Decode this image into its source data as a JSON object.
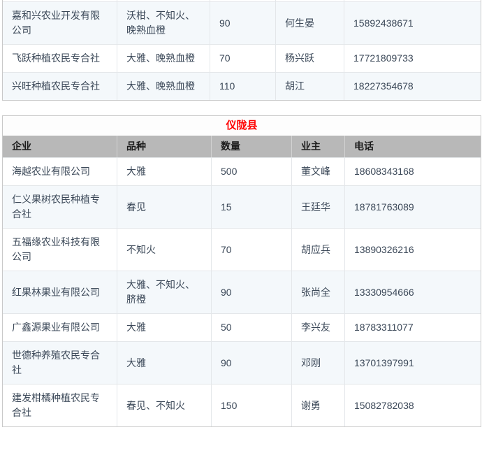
{
  "colors": {
    "accent_title": "#ff0000",
    "header_bg": "#b8b8b8",
    "stripe_bg": "#f4f8fb",
    "cell_text": "#3b4858",
    "border_outer": "#c9c9c9",
    "border_inner": "#e4e7ea"
  },
  "columns_keys": [
    "company",
    "variety",
    "quantity",
    "owner",
    "phone"
  ],
  "top_table": {
    "rows": [
      {
        "company": "嘉和兴农业开发有限公司",
        "variety": "沃柑、不知火、晚熟血橙",
        "quantity": "90",
        "owner": "何生晏",
        "phone": "15892438671",
        "striped": true
      },
      {
        "company": "飞跃种植农民专合社",
        "variety": "大雅、晚熟血橙",
        "quantity": "70",
        "owner": "杨兴跃",
        "phone": "17721809733",
        "striped": false
      },
      {
        "company": "兴旺种植农民专合社",
        "variety": "大雅、晚熟血橙",
        "quantity": "110",
        "owner": "胡江",
        "phone": "18227354678",
        "striped": true
      }
    ]
  },
  "county_table": {
    "title": "仪陇县",
    "headers": [
      "企业",
      "品种",
      "数量",
      "业主",
      "电话"
    ],
    "rows": [
      {
        "company": "海越农业有限公司",
        "variety": "大雅",
        "quantity": "500",
        "owner": "董文峰",
        "phone": "18608343168",
        "striped": false
      },
      {
        "company": "仁义果树农民种植专合社",
        "variety": "春见",
        "quantity": "15",
        "owner": "王廷华",
        "phone": "18781763089",
        "striped": true
      },
      {
        "company": "五福缘农业科技有限公司",
        "variety": "不知火",
        "quantity": "70",
        "owner": "胡应兵",
        "phone": "13890326216",
        "striped": false
      },
      {
        "company": "红果林果业有限公司",
        "variety": "大雅、不知火、脐橙",
        "quantity": "90",
        "owner": "张尚全",
        "phone": "13330954666",
        "striped": true
      },
      {
        "company": "广鑫源果业有限公司",
        "variety": "大雅",
        "quantity": "50",
        "owner": "李兴友",
        "phone": "18783311077",
        "striped": false
      },
      {
        "company": "世德种养殖农民专合社",
        "variety": "大雅",
        "quantity": "90",
        "owner": "邓刚",
        "phone": "13701397991",
        "striped": true
      },
      {
        "company": "建发柑橘种植农民专合社",
        "variety": "春见、不知火",
        "quantity": "150",
        "owner": "谢勇",
        "phone": "15082782038",
        "striped": false
      }
    ]
  }
}
